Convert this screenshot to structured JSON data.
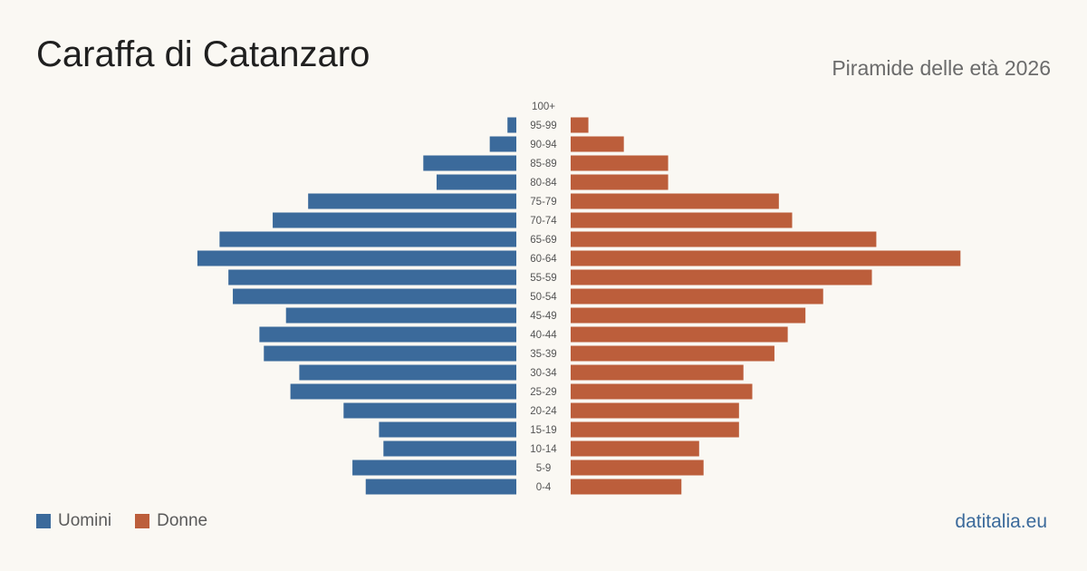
{
  "header": {
    "title": "Caraffa di Catanzaro",
    "subtitle": "Piramide delle età 2026"
  },
  "legend": {
    "men_label": "Uomini",
    "women_label": "Donne"
  },
  "brand": {
    "label": "datitalia.eu"
  },
  "colors": {
    "men": "#3b6a9b",
    "women": "#bc5e3b",
    "background": "#faf8f3",
    "brand": "#3b6a9b"
  },
  "chart_data": {
    "type": "bar",
    "orientation": "horizontal-pyramid",
    "categories": [
      "100+",
      "95-99",
      "90-94",
      "85-89",
      "80-84",
      "75-79",
      "70-74",
      "65-69",
      "60-64",
      "55-59",
      "50-54",
      "45-49",
      "40-44",
      "35-39",
      "30-34",
      "25-29",
      "20-24",
      "15-19",
      "10-14",
      "5-9",
      "0-4"
    ],
    "series": [
      {
        "name": "Uomini",
        "values": [
          0,
          2,
          6,
          21,
          18,
          47,
          55,
          67,
          72,
          65,
          64,
          52,
          58,
          57,
          49,
          51,
          39,
          31,
          30,
          37,
          34
        ]
      },
      {
        "name": "Donne",
        "values": [
          0,
          4,
          12,
          22,
          22,
          47,
          50,
          69,
          88,
          68,
          57,
          53,
          49,
          46,
          39,
          41,
          38,
          38,
          29,
          30,
          25
        ]
      }
    ],
    "xlim": [
      0,
      90
    ],
    "grid": false,
    "legend_position": "bottom-left"
  }
}
